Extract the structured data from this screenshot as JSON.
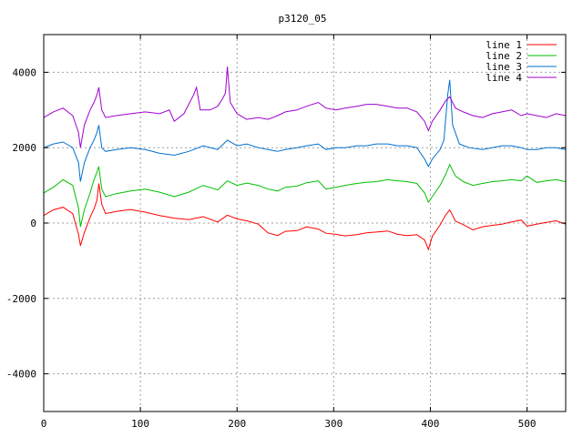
{
  "chart_data": {
    "type": "line",
    "title": "p3120_05",
    "xlabel": "",
    "ylabel": "",
    "xlim": [
      0,
      540
    ],
    "ylim": [
      -5000,
      5000
    ],
    "xticks": [
      0,
      100,
      200,
      300,
      400,
      500
    ],
    "yticks": [
      -4000,
      -2000,
      0,
      2000,
      4000
    ],
    "grid": true,
    "legend_position": "top-right",
    "series": [
      {
        "name": "line 1",
        "color": "#ff0000",
        "points": [
          [
            0,
            200
          ],
          [
            10,
            350
          ],
          [
            20,
            420
          ],
          [
            30,
            250
          ],
          [
            36,
            -300
          ],
          [
            38,
            -600
          ],
          [
            42,
            -250
          ],
          [
            48,
            150
          ],
          [
            52,
            380
          ],
          [
            55,
            600
          ],
          [
            57,
            1050
          ],
          [
            60,
            500
          ],
          [
            64,
            250
          ],
          [
            75,
            310
          ],
          [
            90,
            360
          ],
          [
            105,
            290
          ],
          [
            120,
            200
          ],
          [
            135,
            130
          ],
          [
            150,
            90
          ],
          [
            165,
            170
          ],
          [
            180,
            30
          ],
          [
            190,
            210
          ],
          [
            200,
            110
          ],
          [
            210,
            60
          ],
          [
            222,
            -30
          ],
          [
            232,
            -260
          ],
          [
            242,
            -330
          ],
          [
            250,
            -220
          ],
          [
            262,
            -200
          ],
          [
            272,
            -100
          ],
          [
            284,
            -160
          ],
          [
            292,
            -270
          ],
          [
            302,
            -300
          ],
          [
            312,
            -340
          ],
          [
            324,
            -310
          ],
          [
            334,
            -260
          ],
          [
            344,
            -240
          ],
          [
            356,
            -210
          ],
          [
            366,
            -300
          ],
          [
            376,
            -330
          ],
          [
            386,
            -310
          ],
          [
            394,
            -450
          ],
          [
            398,
            -700
          ],
          [
            402,
            -350
          ],
          [
            410,
            -50
          ],
          [
            416,
            220
          ],
          [
            420,
            350
          ],
          [
            426,
            50
          ],
          [
            434,
            -40
          ],
          [
            444,
            -180
          ],
          [
            454,
            -100
          ],
          [
            464,
            -60
          ],
          [
            474,
            -30
          ],
          [
            484,
            30
          ],
          [
            494,
            80
          ],
          [
            500,
            -80
          ],
          [
            510,
            -30
          ],
          [
            520,
            20
          ],
          [
            530,
            60
          ],
          [
            540,
            -30
          ]
        ]
      },
      {
        "name": "line 2",
        "color": "#00c000",
        "points": [
          [
            0,
            800
          ],
          [
            10,
            950
          ],
          [
            20,
            1150
          ],
          [
            30,
            1000
          ],
          [
            36,
            400
          ],
          [
            38,
            -100
          ],
          [
            42,
            350
          ],
          [
            48,
            800
          ],
          [
            52,
            1150
          ],
          [
            55,
            1350
          ],
          [
            57,
            1500
          ],
          [
            60,
            900
          ],
          [
            64,
            700
          ],
          [
            75,
            780
          ],
          [
            90,
            850
          ],
          [
            105,
            900
          ],
          [
            120,
            820
          ],
          [
            135,
            700
          ],
          [
            150,
            820
          ],
          [
            165,
            1000
          ],
          [
            180,
            880
          ],
          [
            190,
            1120
          ],
          [
            200,
            1000
          ],
          [
            210,
            1060
          ],
          [
            222,
            1000
          ],
          [
            232,
            900
          ],
          [
            242,
            850
          ],
          [
            250,
            950
          ],
          [
            262,
            980
          ],
          [
            272,
            1070
          ],
          [
            284,
            1120
          ],
          [
            292,
            900
          ],
          [
            302,
            950
          ],
          [
            312,
            1000
          ],
          [
            324,
            1050
          ],
          [
            334,
            1080
          ],
          [
            344,
            1100
          ],
          [
            356,
            1150
          ],
          [
            366,
            1120
          ],
          [
            376,
            1100
          ],
          [
            386,
            1050
          ],
          [
            394,
            800
          ],
          [
            398,
            550
          ],
          [
            402,
            700
          ],
          [
            410,
            1000
          ],
          [
            416,
            1300
          ],
          [
            420,
            1550
          ],
          [
            426,
            1250
          ],
          [
            434,
            1100
          ],
          [
            444,
            1000
          ],
          [
            454,
            1050
          ],
          [
            464,
            1100
          ],
          [
            474,
            1120
          ],
          [
            484,
            1150
          ],
          [
            494,
            1120
          ],
          [
            500,
            1250
          ],
          [
            510,
            1080
          ],
          [
            520,
            1120
          ],
          [
            530,
            1150
          ],
          [
            540,
            1100
          ]
        ]
      },
      {
        "name": "line 3",
        "color": "#0070d0",
        "points": [
          [
            0,
            2000
          ],
          [
            10,
            2100
          ],
          [
            20,
            2150
          ],
          [
            30,
            2000
          ],
          [
            36,
            1600
          ],
          [
            38,
            1100
          ],
          [
            42,
            1600
          ],
          [
            48,
            2000
          ],
          [
            52,
            2200
          ],
          [
            55,
            2400
          ],
          [
            57,
            2600
          ],
          [
            60,
            2000
          ],
          [
            64,
            1900
          ],
          [
            75,
            1950
          ],
          [
            90,
            2000
          ],
          [
            105,
            1950
          ],
          [
            120,
            1850
          ],
          [
            135,
            1800
          ],
          [
            150,
            1900
          ],
          [
            165,
            2050
          ],
          [
            180,
            1950
          ],
          [
            190,
            2200
          ],
          [
            200,
            2050
          ],
          [
            210,
            2100
          ],
          [
            222,
            2000
          ],
          [
            232,
            1950
          ],
          [
            242,
            1900
          ],
          [
            250,
            1950
          ],
          [
            262,
            2000
          ],
          [
            272,
            2050
          ],
          [
            284,
            2100
          ],
          [
            292,
            1950
          ],
          [
            302,
            2000
          ],
          [
            312,
            2000
          ],
          [
            324,
            2050
          ],
          [
            334,
            2050
          ],
          [
            344,
            2100
          ],
          [
            356,
            2100
          ],
          [
            366,
            2050
          ],
          [
            376,
            2050
          ],
          [
            386,
            2000
          ],
          [
            394,
            1700
          ],
          [
            398,
            1500
          ],
          [
            402,
            1700
          ],
          [
            410,
            1950
          ],
          [
            414,
            2200
          ],
          [
            418,
            3400
          ],
          [
            420,
            3800
          ],
          [
            423,
            2600
          ],
          [
            430,
            2100
          ],
          [
            440,
            2000
          ],
          [
            454,
            1950
          ],
          [
            464,
            2000
          ],
          [
            474,
            2050
          ],
          [
            484,
            2050
          ],
          [
            494,
            2000
          ],
          [
            500,
            1950
          ],
          [
            510,
            1950
          ],
          [
            520,
            2000
          ],
          [
            530,
            2000
          ],
          [
            540,
            1950
          ]
        ]
      },
      {
        "name": "line 4",
        "color": "#a000d0",
        "points": [
          [
            0,
            2800
          ],
          [
            10,
            2950
          ],
          [
            20,
            3050
          ],
          [
            30,
            2850
          ],
          [
            36,
            2400
          ],
          [
            38,
            2000
          ],
          [
            42,
            2600
          ],
          [
            48,
            3000
          ],
          [
            52,
            3200
          ],
          [
            55,
            3400
          ],
          [
            57,
            3600
          ],
          [
            60,
            3000
          ],
          [
            64,
            2800
          ],
          [
            75,
            2850
          ],
          [
            90,
            2900
          ],
          [
            105,
            2950
          ],
          [
            120,
            2900
          ],
          [
            130,
            3000
          ],
          [
            135,
            2700
          ],
          [
            145,
            2900
          ],
          [
            155,
            3400
          ],
          [
            158,
            3600
          ],
          [
            162,
            3000
          ],
          [
            172,
            3000
          ],
          [
            180,
            3100
          ],
          [
            185,
            3300
          ],
          [
            188,
            3450
          ],
          [
            190,
            4150
          ],
          [
            193,
            3200
          ],
          [
            200,
            2900
          ],
          [
            210,
            2750
          ],
          [
            222,
            2800
          ],
          [
            232,
            2750
          ],
          [
            242,
            2850
          ],
          [
            250,
            2950
          ],
          [
            262,
            3000
          ],
          [
            272,
            3100
          ],
          [
            284,
            3200
          ],
          [
            292,
            3050
          ],
          [
            302,
            3000
          ],
          [
            312,
            3050
          ],
          [
            324,
            3100
          ],
          [
            334,
            3150
          ],
          [
            344,
            3150
          ],
          [
            356,
            3100
          ],
          [
            366,
            3050
          ],
          [
            376,
            3050
          ],
          [
            386,
            2950
          ],
          [
            394,
            2700
          ],
          [
            398,
            2450
          ],
          [
            402,
            2700
          ],
          [
            410,
            3000
          ],
          [
            416,
            3250
          ],
          [
            420,
            3350
          ],
          [
            426,
            3050
          ],
          [
            434,
            2950
          ],
          [
            444,
            2850
          ],
          [
            454,
            2800
          ],
          [
            464,
            2900
          ],
          [
            474,
            2950
          ],
          [
            484,
            3000
          ],
          [
            494,
            2850
          ],
          [
            500,
            2900
          ],
          [
            510,
            2850
          ],
          [
            520,
            2800
          ],
          [
            530,
            2900
          ],
          [
            540,
            2850
          ]
        ]
      }
    ]
  }
}
